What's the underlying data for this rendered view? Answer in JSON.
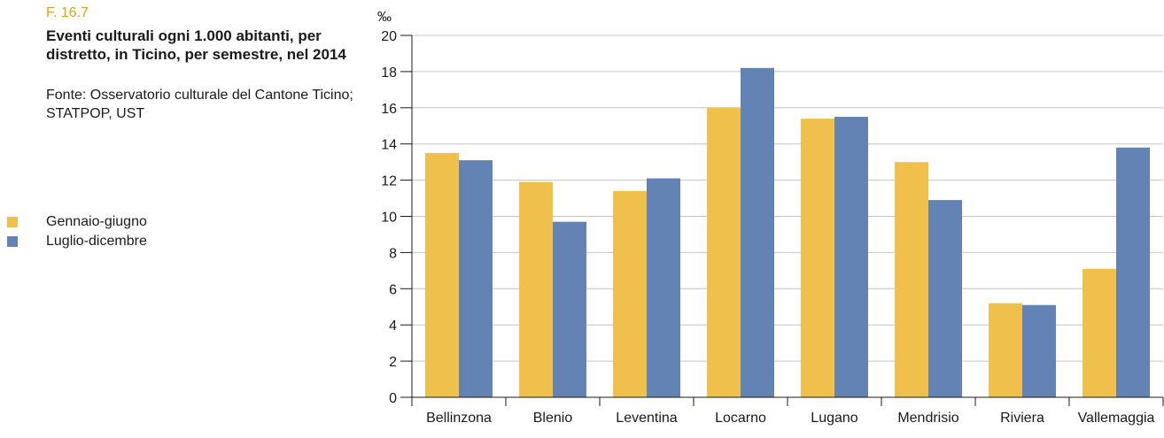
{
  "figure": {
    "number": "F. 16.7",
    "title": "Eventi culturali ogni 1.000 abitanti, per distretto, in Ticino, per semestre, nel 2014",
    "source": "Fonte: Osservatorio culturale del Cantone Ticino; STATPOP, UST"
  },
  "chart_data": {
    "type": "bar",
    "categories": [
      "Bellinzona",
      "Blenio",
      "Leventina",
      "Locarno",
      "Lugano",
      "Mendrisio",
      "Riviera",
      "Vallemaggia"
    ],
    "series": [
      {
        "name": "Gennaio-giugno",
        "color": "#efc04c",
        "values": [
          13.5,
          11.9,
          11.4,
          16.0,
          15.4,
          13.0,
          5.2,
          7.1
        ]
      },
      {
        "name": "Luglio-dicembre",
        "color": "#6283b3",
        "values": [
          13.1,
          9.7,
          12.1,
          18.2,
          15.5,
          10.9,
          5.1,
          13.8
        ]
      }
    ],
    "y_unit": "‰",
    "ylim": [
      0,
      20
    ],
    "yticks": [
      "0",
      "2",
      "4",
      "6",
      "8",
      "10",
      "12",
      "14",
      "16",
      "18",
      "20"
    ],
    "grid": true,
    "legend_position": "left"
  }
}
